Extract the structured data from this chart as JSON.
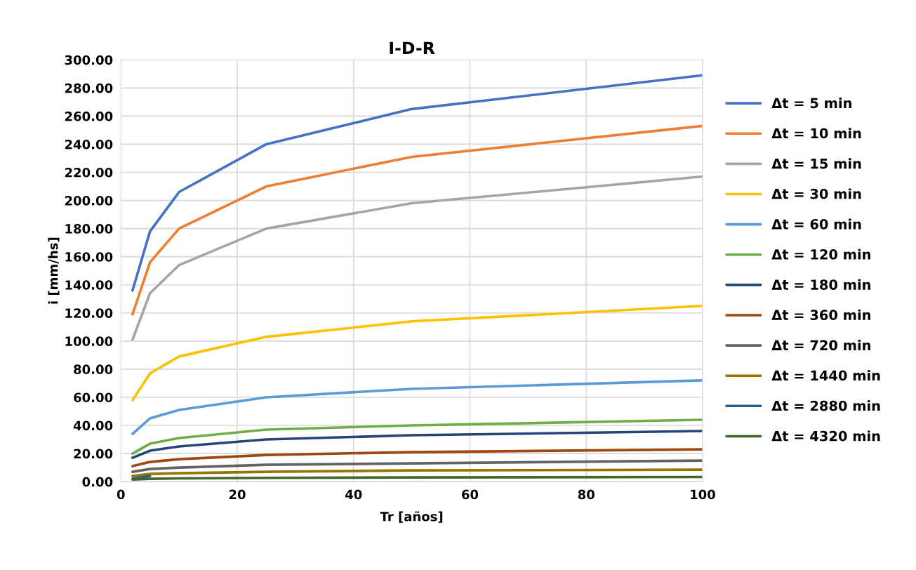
{
  "chart_data": {
    "type": "line",
    "title": "I-D-R",
    "xlabel": "Tr [años]",
    "ylabel": "i [mm/hs]",
    "x": [
      2,
      5,
      10,
      25,
      50,
      100
    ],
    "series": [
      {
        "name": "Δt = 5 min",
        "color": "#4472c4",
        "values": [
          136,
          178,
          206,
          240,
          265,
          289
        ]
      },
      {
        "name": "Δt = 10 min",
        "color": "#ed7d31",
        "values": [
          119,
          156,
          180,
          210,
          231,
          253
        ]
      },
      {
        "name": "Δt = 15 min",
        "color": "#a5a5a5",
        "values": [
          101,
          134,
          154,
          180,
          198,
          217
        ]
      },
      {
        "name": "Δt = 30 min",
        "color": "#ffc000",
        "values": [
          58,
          77,
          89,
          103,
          114,
          125
        ]
      },
      {
        "name": "Δt = 60 min",
        "color": "#5b9bd5",
        "values": [
          34,
          45,
          51,
          60,
          66,
          72
        ]
      },
      {
        "name": "Δt = 120 min",
        "color": "#70ad47",
        "values": [
          20,
          27,
          31,
          37,
          40,
          44
        ]
      },
      {
        "name": "Δt = 180 min",
        "color": "#264478",
        "values": [
          17,
          22,
          25,
          30,
          33,
          36
        ]
      },
      {
        "name": "Δt = 360 min",
        "color": "#9e480e",
        "values": [
          11,
          14,
          16,
          19,
          21,
          23
        ]
      },
      {
        "name": "Δt = 720 min",
        "color": "#636363",
        "values": [
          7,
          9,
          10,
          12,
          13,
          15
        ]
      },
      {
        "name": "Δt = 1440 min",
        "color": "#997300",
        "values": [
          4,
          5.5,
          6,
          7,
          8,
          8.5
        ]
      },
      {
        "name": "Δt = 2880 min",
        "color": "#255e91",
        "values": [
          2,
          4,
          null,
          null,
          null,
          null
        ]
      },
      {
        "name": "Δt = 4320 min",
        "color": "#43682b",
        "values": [
          1.5,
          2,
          2.3,
          2.7,
          3,
          3.3
        ]
      }
    ],
    "xlim": [
      0,
      100
    ],
    "xticks": [
      0,
      20,
      40,
      60,
      80,
      100
    ],
    "ylim": [
      0,
      300
    ],
    "yticks": [
      {
        "value": 0,
        "label": "0.00"
      },
      {
        "value": 20,
        "label": "20.00"
      },
      {
        "value": 40,
        "label": "40.00"
      },
      {
        "value": 60,
        "label": "60.00"
      },
      {
        "value": 80,
        "label": "80.00"
      },
      {
        "value": 100,
        "label": "100.00"
      },
      {
        "value": 120,
        "label": "120.00"
      },
      {
        "value": 140,
        "label": "140.00"
      },
      {
        "value": 160,
        "label": "160.00"
      },
      {
        "value": 180,
        "label": "180.00"
      },
      {
        "value": 200,
        "label": "200.00"
      },
      {
        "value": 220,
        "label": "220.00"
      },
      {
        "value": 240,
        "label": "240.00"
      },
      {
        "value": 260,
        "label": "260.00"
      },
      {
        "value": 280,
        "label": "280.00"
      },
      {
        "value": 300,
        "label": "300.00"
      }
    ],
    "grid": true,
    "legend": "right",
    "marker": "none",
    "line_style": "solid"
  }
}
